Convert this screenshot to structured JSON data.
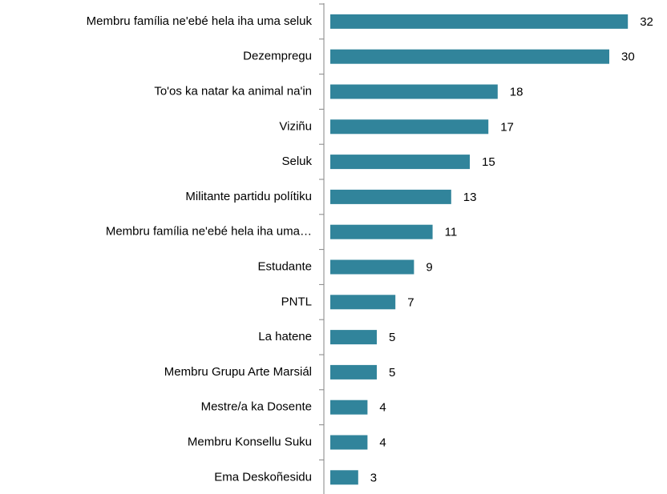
{
  "chart_data": {
    "type": "bar",
    "orientation": "horizontal",
    "color": "#31849b",
    "categories": [
      "Membru família ne'ebé hela iha uma seluk",
      "Dezempregu",
      "To'os ka natar ka animal na'in",
      "Viziñu",
      "Seluk",
      "Militante partidu polítiku",
      "Membru família ne'ebé hela iha uma…",
      "Estudante",
      "PNTL",
      "La hatene",
      "Membru Grupu Arte Marsiál",
      "Mestre/a ka Dosente",
      "Membru Konsellu Suku",
      "Ema Deskoñesidu"
    ],
    "values": [
      32,
      30,
      18,
      17,
      15,
      13,
      11,
      9,
      7,
      5,
      5,
      4,
      4,
      3
    ]
  }
}
